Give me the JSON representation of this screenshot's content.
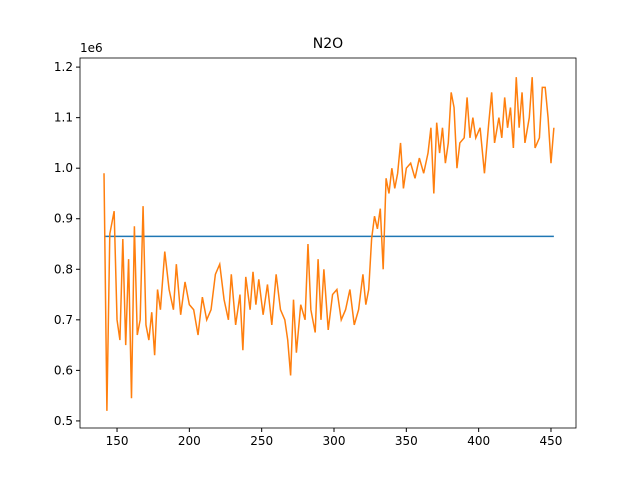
{
  "chart_data": {
    "type": "line",
    "title": "N2O",
    "y_offset_label": "1e6",
    "xlim": [
      124.4,
      467.3
    ],
    "xticks": [
      150,
      200,
      250,
      300,
      350,
      400,
      450
    ],
    "ylim": [
      486000,
      1218000
    ],
    "yticks": [
      {
        "value": 500000,
        "label": "0.5"
      },
      {
        "value": 600000,
        "label": "0.6"
      },
      {
        "value": 700000,
        "label": "0.7"
      },
      {
        "value": 800000,
        "label": "0.8"
      },
      {
        "value": 900000,
        "label": "0.9"
      },
      {
        "value": 1000000,
        "label": "1.0"
      },
      {
        "value": 1100000,
        "label": "1.1"
      },
      {
        "value": 1200000,
        "label": "1.2"
      }
    ],
    "series": [
      {
        "color": "#1f77b4",
        "x": [
          141,
          452
        ],
        "values": [
          865000,
          865000
        ]
      },
      {
        "color": "#ff7f0e",
        "x": [
          141,
          143,
          145,
          148,
          150,
          152,
          154,
          156,
          158,
          160,
          162,
          164,
          166,
          168,
          170,
          172,
          174,
          176,
          178,
          180,
          183,
          186,
          189,
          191,
          194,
          197,
          200,
          203,
          206,
          209,
          212,
          215,
          218,
          221,
          224,
          227,
          229,
          232,
          235,
          237,
          239,
          242,
          244,
          246,
          248,
          251,
          254,
          257,
          260,
          263,
          266,
          268,
          270,
          272,
          274,
          277,
          280,
          282,
          284,
          287,
          289,
          291,
          293,
          296,
          299,
          302,
          305,
          308,
          311,
          314,
          317,
          320,
          322,
          324,
          326,
          328,
          330,
          332,
          334,
          336,
          338,
          340,
          342,
          344,
          346,
          348,
          350,
          353,
          356,
          359,
          362,
          365,
          367,
          369,
          371,
          373,
          375,
          377,
          379,
          381,
          383,
          385,
          387,
          390,
          392,
          394,
          396,
          398,
          401,
          404,
          407,
          409,
          411,
          414,
          416,
          418,
          420,
          422,
          424,
          426,
          428,
          430,
          432,
          435,
          437,
          439,
          442,
          444,
          446,
          448,
          450,
          452
        ],
        "values": [
          990000,
          520000,
          870000,
          915000,
          700000,
          660000,
          860000,
          650000,
          820000,
          545000,
          885000,
          670000,
          700000,
          925000,
          690000,
          660000,
          715000,
          630000,
          760000,
          720000,
          835000,
          760000,
          720000,
          810000,
          710000,
          775000,
          730000,
          720000,
          670000,
          745000,
          700000,
          720000,
          790000,
          810000,
          740000,
          700000,
          790000,
          690000,
          750000,
          640000,
          785000,
          720000,
          795000,
          730000,
          780000,
          710000,
          770000,
          690000,
          790000,
          720000,
          700000,
          660000,
          590000,
          740000,
          635000,
          730000,
          700000,
          850000,
          720000,
          675000,
          820000,
          700000,
          800000,
          680000,
          750000,
          760000,
          700000,
          720000,
          760000,
          690000,
          720000,
          790000,
          730000,
          760000,
          860000,
          905000,
          880000,
          920000,
          800000,
          980000,
          950000,
          1000000,
          960000,
          990000,
          1050000,
          960000,
          1000000,
          1010000,
          980000,
          1020000,
          990000,
          1030000,
          1080000,
          950000,
          1090000,
          1030000,
          1080000,
          1010000,
          1050000,
          1150000,
          1120000,
          1000000,
          1050000,
          1060000,
          1140000,
          1060000,
          1100000,
          1060000,
          1080000,
          990000,
          1090000,
          1150000,
          1050000,
          1100000,
          1060000,
          1140000,
          1080000,
          1120000,
          1040000,
          1180000,
          1080000,
          1150000,
          1050000,
          1100000,
          1180000,
          1040000,
          1060000,
          1160000,
          1160000,
          1100000,
          1010000,
          1080000
        ]
      }
    ]
  }
}
